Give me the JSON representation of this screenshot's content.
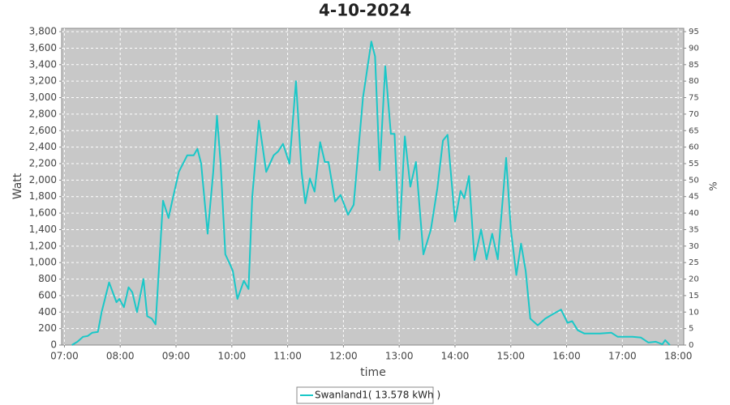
{
  "chart_data": {
    "type": "line",
    "title": "4-10-2024",
    "xlabel": "time",
    "ylabel": "Watt",
    "y2label": "%",
    "xlim": [
      "06:57",
      "18:06"
    ],
    "xticks": [
      "07:00",
      "08:00",
      "09:00",
      "10:00",
      "11:00",
      "12:00",
      "13:00",
      "14:00",
      "15:00",
      "16:00",
      "17:00",
      "18:00"
    ],
    "ylim": [
      0,
      3840
    ],
    "yticks": [
      0,
      200,
      400,
      600,
      800,
      {
        "value": 1000,
        "label": "1,000"
      },
      {
        "value": 1200,
        "label": "1,200"
      },
      {
        "value": 1400,
        "label": "1,400"
      },
      {
        "value": 1600,
        "label": "1,600"
      },
      {
        "value": 1800,
        "label": "1,800"
      },
      {
        "value": 2000,
        "label": "2,000"
      },
      {
        "value": 2200,
        "label": "2,200"
      },
      {
        "value": 2400,
        "label": "2,400"
      },
      {
        "value": 2600,
        "label": "2,600"
      },
      {
        "value": 2800,
        "label": "2,800"
      },
      {
        "value": 3000,
        "label": "3,000"
      },
      {
        "value": 3200,
        "label": "3,200"
      },
      {
        "value": 3400,
        "label": "3,400"
      },
      {
        "value": 3600,
        "label": "3,600"
      },
      {
        "value": 3800,
        "label": "3,800"
      }
    ],
    "y2lim": [
      0,
      96
    ],
    "y2ticks": [
      0,
      5,
      10,
      15,
      20,
      25,
      30,
      35,
      40,
      45,
      50,
      55,
      60,
      65,
      70,
      75,
      80,
      85,
      90,
      95
    ],
    "grid": true,
    "x": [
      "07:08",
      "07:14",
      "07:20",
      "07:25",
      "07:30",
      "07:36",
      "07:40",
      "07:48",
      "07:56",
      "07:59",
      "08:04",
      "08:09",
      "08:13",
      "08:18",
      "08:25",
      "08:29",
      "08:34",
      "08:38",
      "08:41",
      "08:46",
      "08:52",
      "08:56",
      "09:03",
      "09:12",
      "09:19",
      "09:23",
      "09:27",
      "09:34",
      "09:40",
      "09:44",
      "09:48",
      "09:53",
      "09:58",
      "10:01",
      "10:06",
      "10:13",
      "10:18",
      "10:22",
      "10:29",
      "10:37",
      "10:45",
      "10:50",
      "10:55",
      "11:02",
      "11:09",
      "11:15",
      "11:19",
      "11:24",
      "11:29",
      "11:35",
      "11:40",
      "11:44",
      "11:51",
      "11:57",
      "12:05",
      "12:11",
      "12:21",
      "12:30",
      "12:34",
      "12:39",
      "12:45",
      "12:51",
      "12:55",
      "13:00",
      "13:06",
      "13:12",
      "13:18",
      "13:26",
      "13:34",
      "13:41",
      "13:47",
      "13:52",
      "14:00",
      "14:06",
      "14:10",
      "14:15",
      "14:21",
      "14:28",
      "14:34",
      "14:40",
      "14:46",
      "14:55",
      "15:00",
      "15:06",
      "15:11",
      "15:16",
      "15:21",
      "15:29",
      "15:37",
      "15:46",
      "15:54",
      "16:01",
      "16:06",
      "16:12",
      "16:19",
      "16:36",
      "16:48",
      "16:55",
      "17:11",
      "17:20",
      "17:28",
      "17:36",
      "17:43",
      "17:46",
      "17:51"
    ],
    "series": [
      {
        "name": "Swanland1( 13.578 kWh )",
        "color": "#1ac8c8",
        "values": [
          0,
          40,
          100,
          110,
          150,
          160,
          400,
          760,
          520,
          560,
          460,
          700,
          640,
          400,
          800,
          350,
          320,
          250,
          800,
          1750,
          1540,
          1750,
          2100,
          2300,
          2300,
          2380,
          2200,
          1350,
          2100,
          2780,
          2200,
          1100,
          980,
          900,
          560,
          780,
          680,
          1800,
          2720,
          2100,
          2300,
          2350,
          2440,
          2200,
          3200,
          2100,
          1720,
          2020,
          1860,
          2460,
          2220,
          2220,
          1740,
          1820,
          1580,
          1700,
          3000,
          3680,
          3500,
          2120,
          3380,
          2560,
          2560,
          1280,
          2530,
          1920,
          2220,
          1100,
          1400,
          1900,
          2480,
          2550,
          1500,
          1870,
          1780,
          2050,
          1030,
          1400,
          1040,
          1350,
          1040,
          2270,
          1400,
          850,
          1230,
          900,
          320,
          240,
          320,
          380,
          430,
          270,
          290,
          180,
          140,
          140,
          150,
          100,
          100,
          90,
          30,
          40,
          10,
          60,
          0
        ]
      }
    ]
  }
}
